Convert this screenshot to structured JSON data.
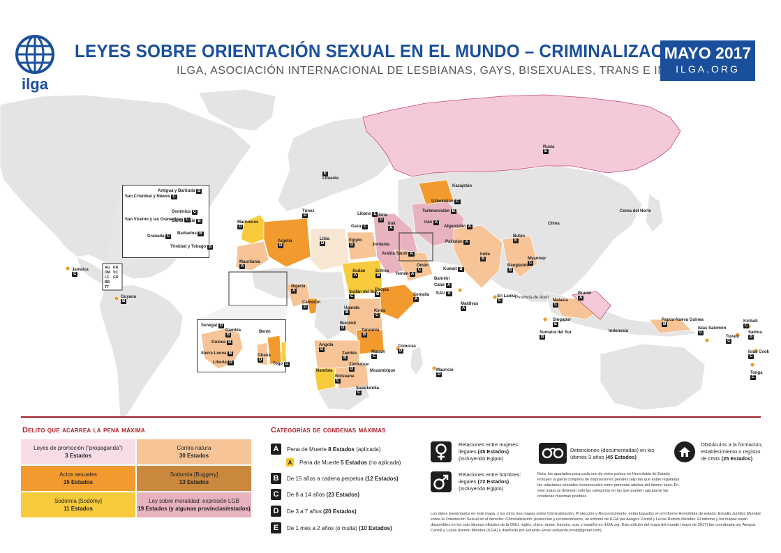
{
  "header": {
    "logo_text": "ilga",
    "title": "LEYES SOBRE ORIENTACIÓN SEXUAL EN EL MUNDO – CRIMINALIZACIÓN",
    "subtitle": "ILGA, ASOCIACIÓN INTERNACIONAL DE LESBIANAS, GAYS, BISEXUALES, TRANS E INTERSEX",
    "date": "MAYO 2017",
    "site": "ILGA.ORG"
  },
  "colors": {
    "brand_blue": "#1a4f9c",
    "legend_red": "#b0202a",
    "promocion": "#f8dde6",
    "contra_natura": "#f6c496",
    "actos_sexuales": "#f29a2e",
    "buggery": "#c9883e",
    "sodomy": "#f7cb3c",
    "moralidad": "#e8b2bf",
    "russia": "#f5cad8",
    "land_grey": "#e4e4e4"
  },
  "map_labels": [
    {
      "name": "Rusia",
      "badge": "E"
    },
    {
      "name": "Lituania",
      "badge": "E"
    },
    {
      "name": "Kazajstán",
      "badge": ""
    },
    {
      "name": "Uzbekistán",
      "badge": "C"
    },
    {
      "name": "Turkmenistán",
      "badge": "B"
    },
    {
      "name": "Corea del Norte",
      "badge": ""
    },
    {
      "name": "China",
      "badge": ""
    },
    {
      "name": "Irán",
      "badge": "A"
    },
    {
      "name": "Afganistán",
      "badge": "A"
    },
    {
      "name": "Pakistán",
      "badge": "A"
    },
    {
      "name": "India",
      "badge": "B"
    },
    {
      "name": "Bután",
      "badge": "E"
    },
    {
      "name": "Bangladés",
      "badge": "B"
    },
    {
      "name": "Myanmar",
      "badge": "C"
    },
    {
      "name": "Sri Lanka",
      "badge": "C"
    },
    {
      "name": "Maldivas",
      "badge": "A"
    },
    {
      "name": "Malasia",
      "badge": "C"
    },
    {
      "name": "Singapur",
      "badge": "E"
    },
    {
      "name": "Brunei",
      "badge": "A"
    },
    {
      "name": "Provincia de Aceh",
      "badge": ""
    },
    {
      "name": "Sumatra del Sur",
      "badge": "B"
    },
    {
      "name": "Indonesia",
      "badge": ""
    },
    {
      "name": "Papúa-Nueva Guinea",
      "badge": "B"
    },
    {
      "name": "Islas Salomón",
      "badge": "C"
    },
    {
      "name": "Kiribati",
      "badge": "C"
    },
    {
      "name": "Samoa",
      "badge": "B"
    },
    {
      "name": "Tuvalu",
      "badge": "C"
    },
    {
      "name": "Islas Cook",
      "badge": "C"
    },
    {
      "name": "Tonga",
      "badge": "C"
    },
    {
      "name": "Líbano",
      "badge": "E"
    },
    {
      "name": "Siria",
      "badge": "D"
    },
    {
      "name": "Gaza",
      "badge": "C"
    },
    {
      "name": "Irak",
      "badge": "A"
    },
    {
      "name": "Jordania",
      "badge": ""
    },
    {
      "name": "Arabia Saudí",
      "badge": "A"
    },
    {
      "name": "Kuwait",
      "badge": "B"
    },
    {
      "name": "Bahréin",
      "badge": ""
    },
    {
      "name": "Catar",
      "badge": "A"
    },
    {
      "name": "EAU",
      "badge": "A"
    },
    {
      "name": "Omán",
      "badge": "C"
    },
    {
      "name": "Yemen",
      "badge": "A"
    },
    {
      "name": "Túnez",
      "badge": "D"
    },
    {
      "name": "Marruecos",
      "badge": "D"
    },
    {
      "name": "Argelia",
      "badge": "D"
    },
    {
      "name": "Libia",
      "badge": "D"
    },
    {
      "name": "Egipto",
      "badge": "D"
    },
    {
      "name": "Mauritania",
      "badge": "A"
    },
    {
      "name": "Sudán",
      "badge": "A"
    },
    {
      "name": "Eritrea",
      "badge": "B"
    },
    {
      "name": "Etiopía",
      "badge": "B"
    },
    {
      "name": "Somalia",
      "badge": "A"
    },
    {
      "name": "Sudán del Sur",
      "badge": "C"
    },
    {
      "name": "Nigeria",
      "badge": "A"
    },
    {
      "name": "Camerún",
      "badge": "D"
    },
    {
      "name": "Uganda",
      "badge": "B"
    },
    {
      "name": "Kenia",
      "badge": "C"
    },
    {
      "name": "Burundi",
      "badge": "D"
    },
    {
      "name": "Tanzania",
      "badge": "B"
    },
    {
      "name": "Comoras",
      "badge": "D"
    },
    {
      "name": "Angola",
      "badge": "D"
    },
    {
      "name": "Zambia",
      "badge": "B"
    },
    {
      "name": "Malawi",
      "badge": "C"
    },
    {
      "name": "Zimbabue",
      "badge": "D"
    },
    {
      "name": "Mozambique",
      "badge": ""
    },
    {
      "name": "Namibia",
      "badge": ""
    },
    {
      "name": "Botsuana",
      "badge": "C"
    },
    {
      "name": "Suazilandia",
      "badge": "C"
    },
    {
      "name": "Mauricio",
      "badge": "D"
    },
    {
      "name": "Jamaica",
      "badge": "C"
    },
    {
      "name": "Guyana",
      "badge": "B"
    }
  ],
  "inset_caribbean": [
    {
      "name": "San Cristóbal y Nieves",
      "badge": "C"
    },
    {
      "name": "Antigua y Barbuda",
      "badge": "B"
    },
    {
      "name": "Dominica",
      "badge": "C"
    },
    {
      "name": "Santa Lucía",
      "badge": "B"
    },
    {
      "name": "San Vicente y las Granadinas",
      "badge": "C"
    },
    {
      "name": "Barbados",
      "badge": "B"
    },
    {
      "name": "Granada",
      "badge": "C"
    },
    {
      "name": "Trinidad y Tobago",
      "badge": "B"
    }
  ],
  "inset_caribbean_small": [
    "AG",
    "DM",
    "LC",
    "BB",
    "TT",
    "KN",
    "VC",
    "GD"
  ],
  "inset_west_africa": [
    {
      "name": "Senegal",
      "badge": "D"
    },
    {
      "name": "Gambia",
      "badge": "B"
    },
    {
      "name": "Guinea",
      "badge": "D"
    },
    {
      "name": "Sierra Leona",
      "badge": "B"
    },
    {
      "name": "Liberia",
      "badge": "D"
    },
    {
      "name": "Benín",
      "badge": ""
    },
    {
      "name": "Ghana",
      "badge": "D"
    },
    {
      "name": "Togo",
      "badge": "D"
    }
  ],
  "legend_delito": {
    "title": "Delito que acarrea la pena máxima",
    "cells": [
      {
        "label": "Leyes de promoción (“propaganda”)",
        "count": "3 Estados"
      },
      {
        "label": "Contra natura",
        "count": "30 Estados"
      },
      {
        "label": "Actos sexuales",
        "count": "15 Estados"
      },
      {
        "label": "Sodomía [Buggery]",
        "count": "13 Estados"
      },
      {
        "label": "Sodomía [Sodomy]",
        "count": "11 Estados"
      },
      {
        "label": "Ley sobre moralidad: expresión LGB",
        "count": "19 Estados (y algunas provincias/estados)"
      }
    ]
  },
  "legend_categorias": {
    "title": "Categorías de condenas máximas",
    "items": [
      {
        "letter": "A",
        "text": "Pena de Muerte",
        "bold": "8 Estados",
        "extra": "(aplicada)"
      },
      {
        "letter": "A",
        "text": "Pena de Muerte",
        "bold": "5 Estados",
        "extra": "(no aplicada)"
      },
      {
        "letter": "B",
        "text": "De 15 años a cadena perpetua",
        "bold": "(12 Estados)",
        "extra": ""
      },
      {
        "letter": "C",
        "text": "De 8 a 14 años",
        "bold": "(23 Estados)",
        "extra": ""
      },
      {
        "letter": "D",
        "text": "De 3 a 7 años",
        "bold": "(20 Estados)",
        "extra": ""
      },
      {
        "letter": "E",
        "text": "De 1 mes a 2 años (o multa)",
        "bold": "(10 Estados)",
        "extra": ""
      }
    ]
  },
  "legend_iconos": {
    "mujeres": {
      "l1": "Relaciones entre mujeres:",
      "l2": "ilegales",
      "bold": "(45 Estados)",
      "l3": "(incluyendo Egipto)"
    },
    "hombres": {
      "l1": "Relaciones entre hombres:",
      "l2": "ilegales",
      "bold": "(72 Estados)",
      "l3": "(incluyendo Egipto)"
    },
    "detenciones": {
      "l1": "Detenciones (documentadas) en los",
      "l2": "últimos 3 años",
      "bold": "(45 Estados)"
    },
    "ong": {
      "l1": "Obstáculos a la formación,",
      "l2": "establecimiento o registro",
      "l3": "de ONG",
      "bold": "(25 Estados)"
    },
    "nota": "Nota: los apartados para cada uno de estos países en Homofobia de Estado incluyen la gama completa de disposiciones penales bajo las que están reguladas las relaciones sexuales consensuales entre personas adultas del mismo sexo. En este mapa se delinean sólo las categorías en las que pueden agruparse las condenas máximas posibles.",
    "fuente": "Los datos presentados en este mapa, y los otros tres mapas sobre Criminalización, Protección y Reconocimiento, están basados en el informe Homofobia de estado: Estudio Jurídico Mundial sobre la Orientación Sexual en el derecho: Criminalización, protección y reconocimiento, un informe de ILGA por Aengus Carroll y Lucas Ramón Mendos. El informe y los mapas están disponibles en los seis idiomas oficiales de la ONU: inglés, chino, árabe, francés, ruso y español en ILGA.org. Esta edición del mapa del mundo (mayo de 2017) fue coordinada por Aengus Carroll y Lucas Ramón Mendos (ILGA) y diseñada por Eduardo Enoki (eduardo.enoki@gmail.com)."
  }
}
